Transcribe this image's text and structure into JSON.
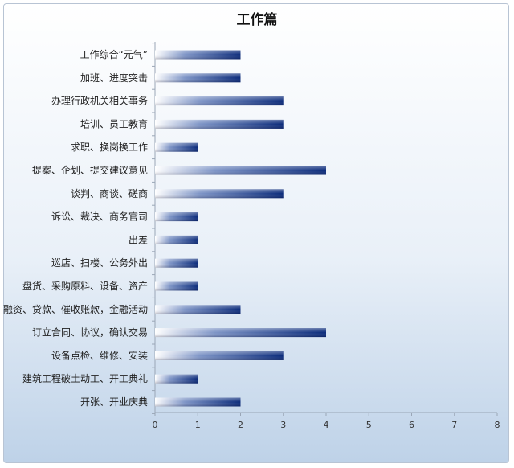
{
  "chart_data": {
    "type": "bar",
    "orientation": "horizontal",
    "title": "工作篇",
    "xlabel": "",
    "ylabel": "",
    "categories": [
      "工作综合“元气”",
      "加班、进度突击",
      "办理行政机关相关事务",
      "培训、员工教育",
      "求职、换岗换工作",
      "提案、企划、提交建议意见",
      "谈判、商谈、磋商",
      "诉讼、裁决、商务官司",
      "出差",
      "巡店、扫楼、公务外出",
      "盘货、采购原料、设备、资产",
      "融资、贷款、催收账款，金融活动",
      "订立合同、协议，确认交易",
      "设备点检、维修、安装",
      "建筑工程破土动工、开工典礼",
      "开张、开业庆典"
    ],
    "values": [
      2,
      2,
      3,
      3,
      1,
      4,
      3,
      1,
      1,
      1,
      1,
      2,
      4,
      3,
      1,
      2
    ],
    "xlim": [
      0,
      8
    ],
    "xticks": [
      0,
      1,
      2,
      3,
      4,
      5,
      6,
      7,
      8
    ],
    "grid": false,
    "legend": "none",
    "bar_color": "#0a2a7a"
  }
}
